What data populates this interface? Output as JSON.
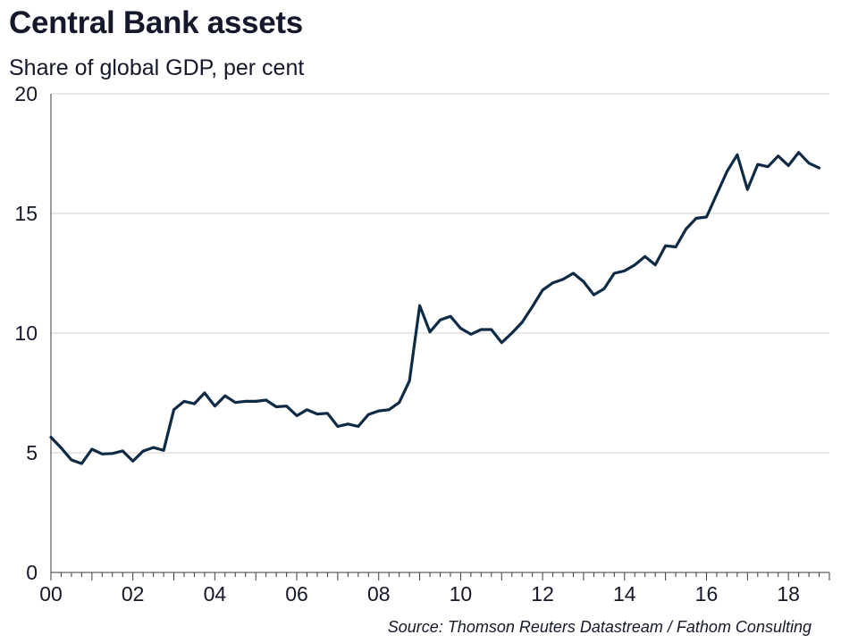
{
  "header": {
    "title": "Central Bank assets",
    "subtitle": "Share of global GDP, per cent"
  },
  "footer": {
    "source": "Source: Thomson Reuters Datastream / Fathom Consulting"
  },
  "colors": {
    "line": "#0f2a45",
    "grid": "#d0d0d0",
    "axis": "#3a3a3a"
  },
  "chart_data": {
    "type": "line",
    "title": "Central Bank assets",
    "subtitle": "Share of global GDP, per cent",
    "xlabel": "",
    "ylabel": "",
    "xlim": [
      2000,
      2019
    ],
    "ylim": [
      0,
      20
    ],
    "grid": "horizontal",
    "legend": "none",
    "x_ticks": [
      {
        "value": 2000,
        "label": "00"
      },
      {
        "value": 2002,
        "label": "02"
      },
      {
        "value": 2004,
        "label": "04"
      },
      {
        "value": 2006,
        "label": "06"
      },
      {
        "value": 2008,
        "label": "08"
      },
      {
        "value": 2010,
        "label": "10"
      },
      {
        "value": 2012,
        "label": "12"
      },
      {
        "value": 2014,
        "label": "14"
      },
      {
        "value": 2016,
        "label": "16"
      },
      {
        "value": 2018,
        "label": "18"
      }
    ],
    "y_ticks": [
      {
        "value": 0,
        "label": "0"
      },
      {
        "value": 5,
        "label": "5"
      },
      {
        "value": 10,
        "label": "10"
      },
      {
        "value": 15,
        "label": "15"
      },
      {
        "value": 20,
        "label": "20"
      }
    ],
    "series": [
      {
        "x": [
          2000.0,
          2000.25,
          2000.5,
          2000.75,
          2001.0,
          2001.25,
          2001.5,
          2001.75,
          2002.0,
          2002.25,
          2002.5,
          2002.75,
          2003.0,
          2003.25,
          2003.5,
          2003.75,
          2004.0,
          2004.25,
          2004.5,
          2004.75,
          2005.0,
          2005.25,
          2005.5,
          2005.75,
          2006.0,
          2006.25,
          2006.5,
          2006.75,
          2007.0,
          2007.25,
          2007.5,
          2007.75,
          2008.0,
          2008.25,
          2008.5,
          2008.75,
          2009.0,
          2009.25,
          2009.5,
          2009.75,
          2010.0,
          2010.25,
          2010.5,
          2010.75,
          2011.0,
          2011.25,
          2011.5,
          2011.75,
          2012.0,
          2012.25,
          2012.5,
          2012.75,
          2013.0,
          2013.25,
          2013.5,
          2013.75,
          2014.0,
          2014.25,
          2014.5,
          2014.75,
          2015.0,
          2015.25,
          2015.5,
          2015.75,
          2016.0,
          2016.25,
          2016.5,
          2016.75,
          2017.0,
          2017.25,
          2017.5,
          2017.75,
          2018.0,
          2018.25,
          2018.5,
          2018.75
        ],
        "values": [
          5.65,
          5.2,
          4.7,
          4.55,
          5.15,
          4.95,
          4.97,
          5.08,
          4.65,
          5.07,
          5.22,
          5.1,
          6.8,
          7.15,
          7.05,
          7.5,
          6.95,
          7.38,
          7.1,
          7.15,
          7.15,
          7.2,
          6.92,
          6.95,
          6.55,
          6.8,
          6.62,
          6.65,
          6.1,
          6.2,
          6.1,
          6.6,
          6.75,
          6.8,
          7.1,
          8.0,
          11.15,
          10.05,
          10.55,
          10.7,
          10.2,
          9.95,
          10.15,
          10.15,
          9.6,
          10.0,
          10.45,
          11.1,
          11.8,
          12.1,
          12.25,
          12.5,
          12.15,
          11.6,
          11.85,
          12.5,
          12.6,
          12.85,
          13.2,
          12.85,
          13.65,
          13.6,
          14.35,
          14.8,
          14.85,
          15.8,
          16.75,
          17.45,
          16.0,
          17.05,
          16.95,
          17.4,
          17.0,
          17.55,
          17.1,
          16.9
        ]
      }
    ]
  }
}
